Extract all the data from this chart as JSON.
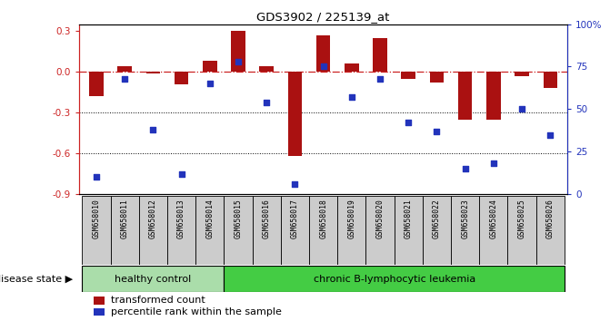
{
  "title": "GDS3902 / 225139_at",
  "samples": [
    "GSM658010",
    "GSM658011",
    "GSM658012",
    "GSM658013",
    "GSM658014",
    "GSM658015",
    "GSM658016",
    "GSM658017",
    "GSM658018",
    "GSM658019",
    "GSM658020",
    "GSM658021",
    "GSM658022",
    "GSM658023",
    "GSM658024",
    "GSM658025",
    "GSM658026"
  ],
  "bar_values": [
    -0.18,
    0.04,
    -0.01,
    -0.09,
    0.08,
    0.3,
    0.04,
    -0.62,
    0.27,
    0.06,
    0.25,
    -0.05,
    -0.08,
    -0.35,
    -0.35,
    -0.03,
    -0.12
  ],
  "dot_pct": [
    10,
    68,
    38,
    12,
    65,
    78,
    54,
    6,
    75,
    57,
    68,
    42,
    37,
    15,
    18,
    50,
    35
  ],
  "healthy_count": 5,
  "bar_color": "#aa1111",
  "dot_color": "#2233bb",
  "ylim_left": [
    -0.9,
    0.35
  ],
  "ylim_right": [
    0,
    100
  ],
  "yticks_left": [
    -0.9,
    -0.6,
    -0.3,
    0.0,
    0.3
  ],
  "yticks_right": [
    0,
    25,
    50,
    75,
    100
  ],
  "ytick_labels_right": [
    "0",
    "25",
    "50",
    "75",
    "100%"
  ],
  "disease_state_label": "disease state",
  "healthy_label": "healthy control",
  "leukemia_label": "chronic B-lymphocytic leukemia",
  "legend_bar_label": "transformed count",
  "legend_dot_label": "percentile rank within the sample",
  "healthy_color": "#aaddaa",
  "leukemia_color": "#44cc44",
  "sample_bg_color": "#cccccc",
  "bar_width": 0.5
}
